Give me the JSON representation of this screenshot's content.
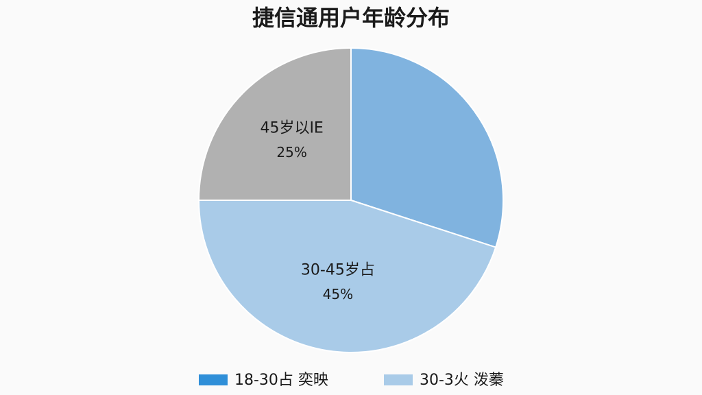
{
  "chart_data": {
    "type": "pie",
    "title": "捷信通用户年龄分布",
    "categories": [
      null,
      "30-45岁占",
      "45岁以IE"
    ],
    "values": [
      30,
      45,
      25
    ],
    "value_labels": [
      null,
      "45%",
      "25%"
    ],
    "colors": [
      "#80b3df",
      "#a9cbe8",
      "#b1b1b1"
    ],
    "legend": [
      {
        "label": "18-30占  奕映",
        "color": "#2f8fd8"
      },
      {
        "label": "30-3火  泼蓁",
        "color": "#a9cbe8"
      }
    ]
  }
}
